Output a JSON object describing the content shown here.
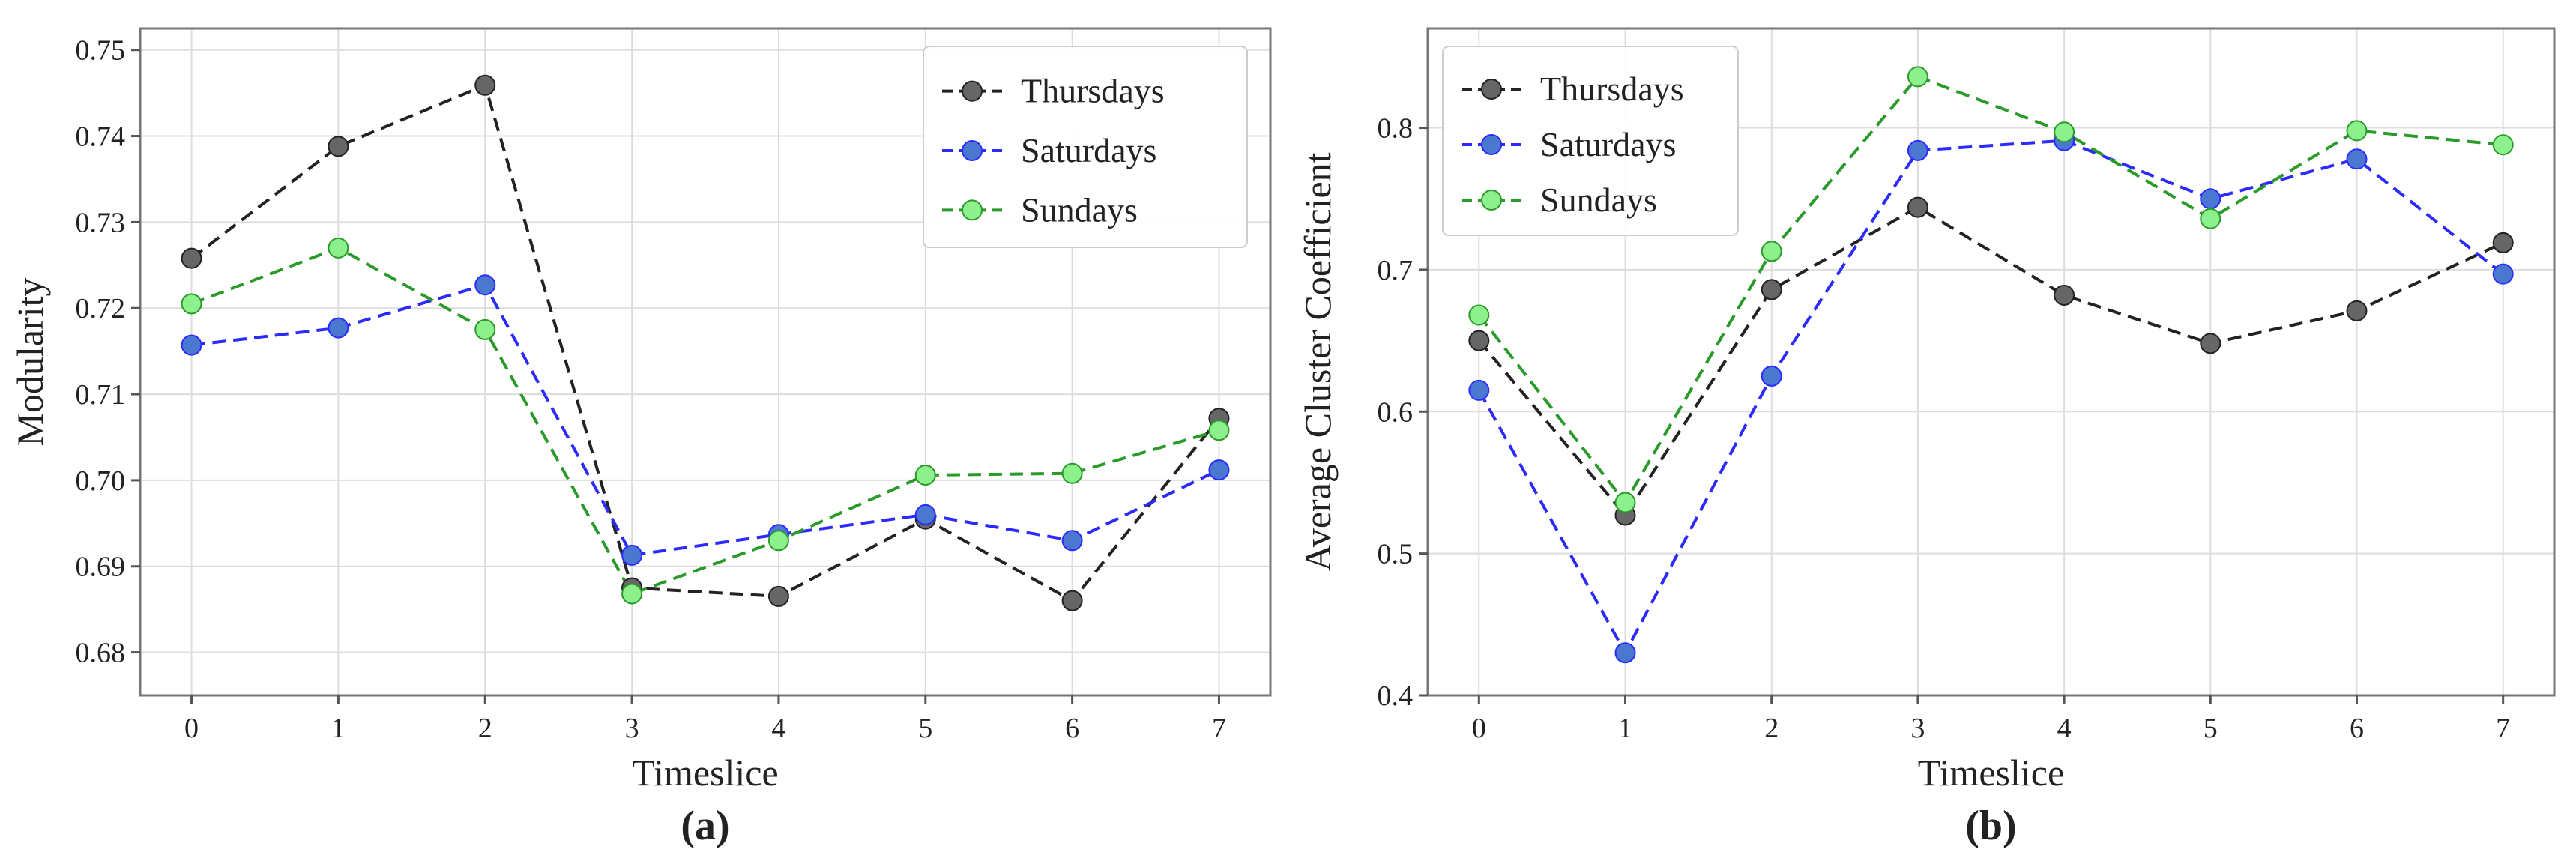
{
  "chart_data": [
    {
      "type": "line",
      "panel_label": "(a)",
      "xlabel": "Timeslice",
      "ylabel": "Modularity",
      "x": [
        0,
        1,
        2,
        3,
        4,
        5,
        6,
        7
      ],
      "xlim": [
        -0.35,
        7.35
      ],
      "ylim": [
        0.675,
        0.7525
      ],
      "yticks": [
        0.68,
        0.69,
        0.7,
        0.71,
        0.72,
        0.73,
        0.74,
        0.75
      ],
      "ytick_labels": [
        "0.68",
        "0.69",
        "0.70",
        "0.71",
        "0.72",
        "0.73",
        "0.74",
        "0.75"
      ],
      "xtick_labels": [
        "0",
        "1",
        "2",
        "3",
        "4",
        "5",
        "6",
        "7"
      ],
      "grid": true,
      "legend_position": "top-right",
      "series": [
        {
          "name": "Thursdays",
          "values": [
            0.7258,
            0.7388,
            0.7459,
            0.6875,
            0.6865,
            0.6955,
            0.686,
            0.7072
          ],
          "line_color": "#222222",
          "marker_color": "#666666"
        },
        {
          "name": "Saturdays",
          "values": [
            0.7157,
            0.7177,
            0.7227,
            0.6913,
            0.6937,
            0.696,
            0.693,
            0.7012
          ],
          "line_color": "#2b2bff",
          "marker_color": "#4a77d0"
        },
        {
          "name": "Sundays",
          "values": [
            0.7205,
            0.727,
            0.7175,
            0.6868,
            0.693,
            0.7006,
            0.7008,
            0.7058
          ],
          "line_color": "#2a9a2a",
          "marker_color": "#8cf08c"
        }
      ]
    },
    {
      "type": "line",
      "panel_label": "(b)",
      "xlabel": "Timeslice",
      "ylabel": "Average Cluster Coefficient",
      "x": [
        0,
        1,
        2,
        3,
        4,
        5,
        6,
        7
      ],
      "xlim": [
        -0.35,
        7.35
      ],
      "ylim": [
        0.4,
        0.87
      ],
      "yticks": [
        0.4,
        0.5,
        0.6,
        0.7,
        0.8
      ],
      "ytick_labels": [
        "0.4",
        "0.5",
        "0.6",
        "0.7",
        "0.8"
      ],
      "xtick_labels": [
        "0",
        "1",
        "2",
        "3",
        "4",
        "5",
        "6",
        "7"
      ],
      "grid": true,
      "legend_position": "top-left",
      "series": [
        {
          "name": "Thursdays",
          "values": [
            0.65,
            0.527,
            0.686,
            0.744,
            0.682,
            0.648,
            0.671,
            0.719
          ],
          "line_color": "#222222",
          "marker_color": "#666666"
        },
        {
          "name": "Saturdays",
          "values": [
            0.615,
            0.43,
            0.625,
            0.784,
            0.791,
            0.75,
            0.778,
            0.697
          ],
          "line_color": "#2b2bff",
          "marker_color": "#4a77d0"
        },
        {
          "name": "Sundays",
          "values": [
            0.668,
            0.536,
            0.713,
            0.836,
            0.797,
            0.736,
            0.798,
            0.788
          ],
          "line_color": "#2a9a2a",
          "marker_color": "#8cf08c"
        }
      ]
    }
  ]
}
